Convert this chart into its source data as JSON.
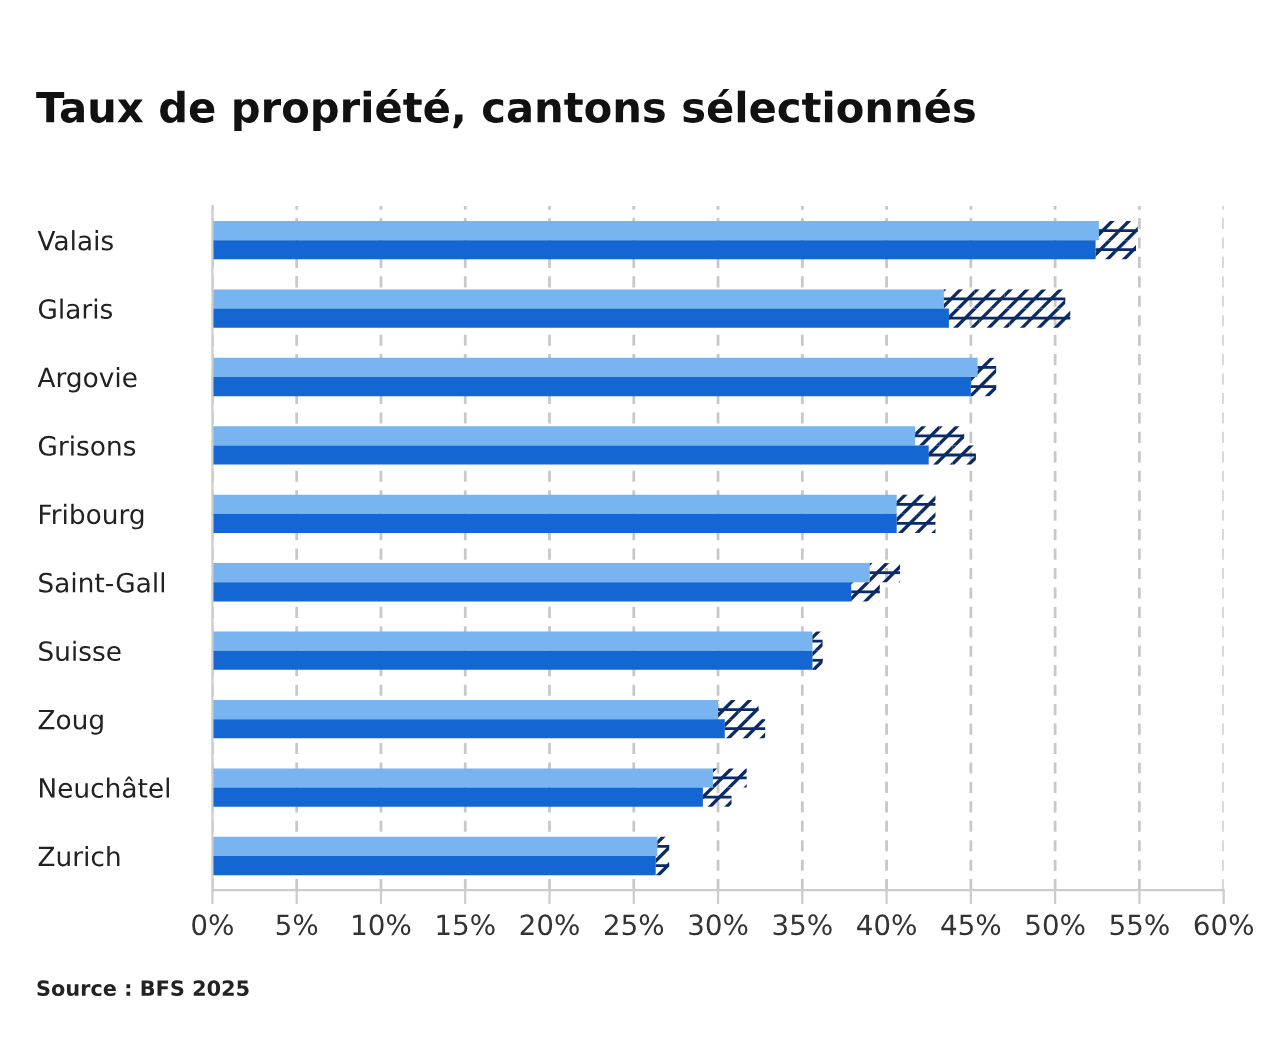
{
  "chart_data": {
    "type": "bar",
    "orientation": "horizontal",
    "title": "Taux de propriété, cantons sélectionnés",
    "categories": [
      "Valais",
      "Glaris",
      "Argovie",
      "Grisons",
      "Fribourg",
      "Saint-Gall",
      "Suisse",
      "Zoug",
      "Neuchâtel",
      "Zurich"
    ],
    "series": [
      {
        "color": "#78b4f0",
        "values": [
          52.6,
          43.4,
          45.4,
          41.7,
          40.6,
          39.0,
          35.6,
          30.0,
          29.7,
          26.4
        ],
        "errors": [
          [
            52.6,
            54.9
          ],
          [
            43.4,
            50.6
          ],
          [
            45.4,
            46.5
          ],
          [
            41.7,
            44.6
          ],
          [
            40.6,
            42.9
          ],
          [
            39.0,
            40.8
          ],
          [
            35.6,
            36.2
          ],
          [
            30.0,
            32.4
          ],
          [
            29.7,
            31.7
          ],
          [
            26.4,
            27.1
          ]
        ]
      },
      {
        "color": "#1466d2",
        "values": [
          52.4,
          43.7,
          45.0,
          42.5,
          40.6,
          37.9,
          35.6,
          30.4,
          29.1,
          26.3
        ],
        "errors": [
          [
            52.4,
            54.8
          ],
          [
            43.7,
            50.9
          ],
          [
            45.0,
            46.5
          ],
          [
            42.5,
            45.3
          ],
          [
            40.6,
            42.9
          ],
          [
            37.9,
            39.6
          ],
          [
            35.6,
            36.2
          ],
          [
            30.4,
            32.8
          ],
          [
            29.1,
            30.8
          ],
          [
            26.3,
            27.1
          ]
        ]
      }
    ],
    "xlim": [
      0,
      60
    ],
    "xticks": [
      {
        "value": 0,
        "label": "0%"
      },
      {
        "value": 5,
        "label": "5%"
      },
      {
        "value": 10,
        "label": "10%"
      },
      {
        "value": 15,
        "label": "15%"
      },
      {
        "value": 20,
        "label": "20%"
      },
      {
        "value": 25,
        "label": "25%"
      },
      {
        "value": 30,
        "label": "30%"
      },
      {
        "value": 35,
        "label": "35%"
      },
      {
        "value": 40,
        "label": "40%"
      },
      {
        "value": 45,
        "label": "45%"
      },
      {
        "value": 50,
        "label": "50%"
      },
      {
        "value": 55,
        "label": "55%"
      },
      {
        "value": 60,
        "label": "60%"
      }
    ],
    "grid": "x",
    "annotations": [
      "Source : BFS 2025"
    ]
  }
}
